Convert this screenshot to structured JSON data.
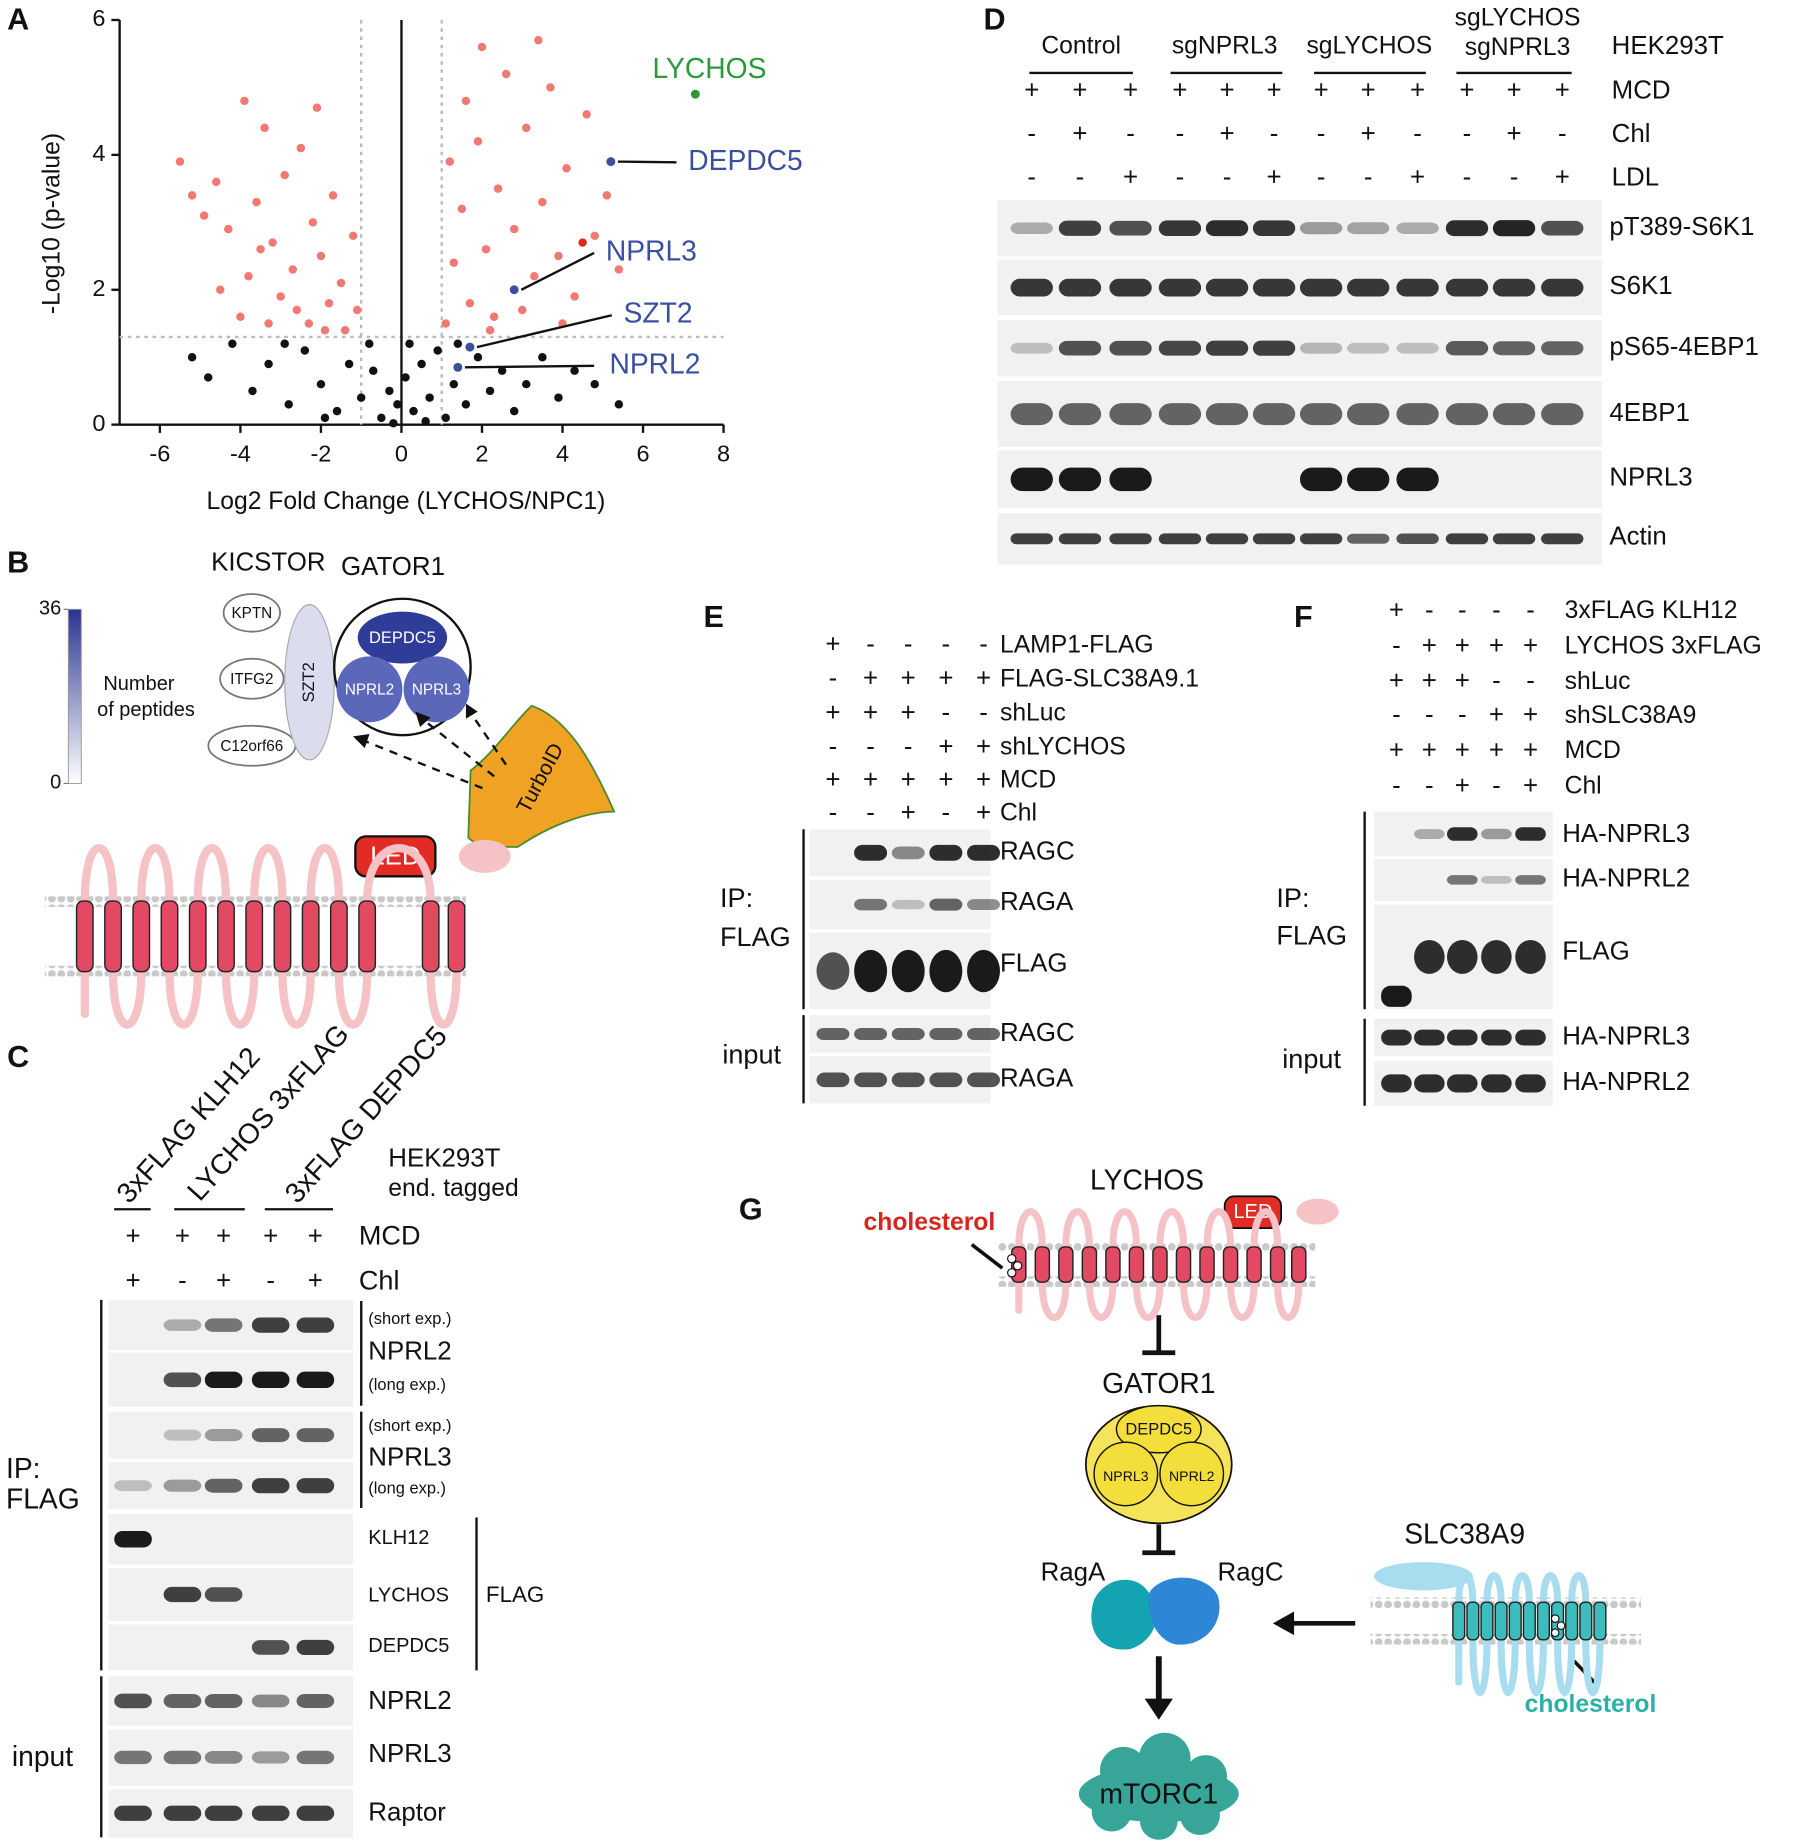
{
  "chart_data": {
    "type": "scatter",
    "xlabel": "Log2 Fold Change (LYCHOS/NPC1)",
    "ylabel": "-Log10 (p-value)",
    "xlim": [
      -7,
      8
    ],
    "xticks": [
      -6,
      -4,
      -2,
      0,
      2,
      4,
      6,
      8
    ],
    "ylim": [
      0,
      6
    ],
    "yticks": [
      0,
      2,
      4,
      6
    ],
    "thresholds": {
      "x": [
        -1,
        1
      ],
      "y": 1.3
    },
    "series": [
      {
        "color": "#f07a72",
        "x": [
          -5.5,
          -5.2,
          -4.9,
          -4.6,
          -4.3,
          -4.0,
          -3.8,
          -3.6,
          -3.4,
          -3.2,
          -3.0,
          -2.9,
          -2.7,
          -2.5,
          -2.3,
          -2.2,
          -2.0,
          -1.8,
          -1.7,
          -1.5,
          -1.4,
          -1.2,
          -1.1,
          -3.3,
          -2.6,
          -4.5,
          -3.9,
          -2.1,
          -1.9,
          -3.5,
          1.1,
          1.3,
          1.5,
          1.7,
          1.9,
          2.1,
          2.3,
          2.4,
          2.6,
          2.8,
          3.0,
          3.1,
          3.3,
          3.5,
          3.7,
          3.9,
          4.1,
          4.3,
          4.6,
          4.8,
          5.1,
          5.4,
          2.0,
          3.4,
          1.2,
          2.2,
          4.0,
          1.6
        ],
        "values": [
          3.9,
          3.4,
          3.1,
          3.6,
          2.9,
          1.6,
          2.2,
          3.3,
          4.4,
          2.7,
          1.9,
          3.7,
          2.3,
          4.1,
          1.5,
          3.0,
          2.5,
          1.8,
          3.4,
          2.1,
          1.4,
          2.8,
          1.7,
          1.5,
          1.7,
          2.0,
          4.8,
          4.7,
          1.4,
          2.6,
          1.5,
          2.4,
          3.2,
          1.8,
          4.2,
          2.6,
          1.6,
          3.5,
          5.2,
          2.9,
          1.7,
          4.4,
          2.2,
          3.3,
          5.0,
          2.5,
          3.8,
          1.9,
          4.6,
          2.8,
          3.4,
          2.3,
          5.6,
          5.7,
          3.9,
          1.4,
          1.5,
          4.8
        ]
      },
      {
        "color": "#111111",
        "x": [
          -5.2,
          -4.8,
          -4.2,
          -3.7,
          -3.3,
          -2.8,
          -2.4,
          -2.0,
          -1.6,
          -1.3,
          -1.0,
          -0.7,
          -0.5,
          -0.3,
          -0.1,
          0.1,
          0.3,
          0.5,
          0.7,
          0.9,
          1.1,
          1.3,
          1.6,
          1.9,
          2.2,
          2.5,
          2.8,
          3.1,
          3.5,
          3.9,
          4.3,
          4.8,
          5.4,
          -0.8,
          0.2,
          -1.9,
          1.4,
          -2.9,
          0.6,
          -0.2
        ],
        "values": [
          1.0,
          0.7,
          1.2,
          0.5,
          0.9,
          0.3,
          1.1,
          0.6,
          0.2,
          0.9,
          0.4,
          0.8,
          0.1,
          0.5,
          0.3,
          0.7,
          0.2,
          0.9,
          0.4,
          1.1,
          0.1,
          0.6,
          0.3,
          1.0,
          0.5,
          0.8,
          0.2,
          0.6,
          1.0,
          0.4,
          0.8,
          0.6,
          0.3,
          1.2,
          1.2,
          0.1,
          1.2,
          1.2,
          0.05,
          0.02
        ]
      },
      {
        "color": "#e0261e",
        "x": [
          4.5
        ],
        "values": [
          2.7
        ]
      }
    ],
    "annotations": [
      {
        "text": "LYCHOS",
        "x": 7.3,
        "y": 4.9,
        "color": "#2a9a3c"
      },
      {
        "text": "DEPDC5",
        "x": 5.2,
        "y": 3.9,
        "color": "#3a4fa0"
      },
      {
        "text": "NPRL3",
        "x": 2.8,
        "y": 2.0,
        "color": "#3a4fa0"
      },
      {
        "text": "SZT2",
        "x": 1.7,
        "y": 1.15,
        "color": "#3a4fa0"
      },
      {
        "text": "NPRL2",
        "x": 1.4,
        "y": 0.85,
        "color": "#3a4fa0"
      }
    ]
  },
  "figure": {
    "panel_labels": [
      "A",
      "B",
      "C",
      "D",
      "E",
      "F",
      "G"
    ],
    "B": {
      "kicstor": "KICSTOR",
      "gator1": "GATOR1",
      "kicstor_subunits": [
        "KPTN",
        "ITFG2",
        "C12orf66"
      ],
      "szt2": "SZT2",
      "gator1_subunits": [
        "DEPDC5",
        "NPRL2",
        "NPRL3"
      ],
      "colorbar": {
        "ticks": [
          0,
          36
        ],
        "label": [
          "Number",
          "of peptides"
        ]
      },
      "turboid": "TurboID",
      "led": "LED"
    },
    "C": {
      "lanes": [
        "3xFLAG KLH12",
        "LYCHOS 3xFLAG",
        "3xFLAG DEPDC5"
      ],
      "cell": [
        "HEK293T",
        "end. tagged"
      ],
      "rows": [
        {
          "label": "MCD",
          "signs": [
            "+",
            "+",
            "+",
            "+",
            "+"
          ]
        },
        {
          "label": "Chl",
          "signs": [
            "+",
            "-",
            "+",
            "-",
            "+"
          ]
        }
      ],
      "blot_labels": [
        "(short exp.)",
        "NPRL2",
        "(long exp.)",
        "(short exp.)",
        "NPRL3",
        "(long exp.)",
        "KLH12",
        "LYCHOS",
        "DEPDC5",
        "NPRL2",
        "NPRL3",
        "Raptor"
      ],
      "flag": "FLAG",
      "ip": [
        "IP:",
        "FLAG"
      ],
      "input": "input"
    },
    "D": {
      "groups": [
        "Control",
        "sgNPRL3",
        "sgLYCHOS",
        [
          "sgLYCHOS",
          "sgNPRL3"
        ]
      ],
      "cell": "HEK293T",
      "rows": [
        {
          "label": "MCD",
          "signs": [
            "+",
            "+",
            "+",
            "+",
            "+",
            "+",
            "+",
            "+",
            "+",
            "+",
            "+",
            "+"
          ]
        },
        {
          "label": "Chl",
          "signs": [
            "-",
            "+",
            "-",
            "-",
            "+",
            "-",
            "-",
            "+",
            "-",
            "-",
            "+",
            "-"
          ]
        },
        {
          "label": "LDL",
          "signs": [
            "-",
            "-",
            "+",
            "-",
            "-",
            "+",
            "-",
            "-",
            "+",
            "-",
            "-",
            "+"
          ]
        }
      ],
      "blot_labels": [
        "pT389-S6K1",
        "S6K1",
        "pS65-4EBP1",
        "4EBP1",
        "NPRL3",
        "Actin"
      ]
    },
    "E": {
      "rows": [
        {
          "label": "LAMP1-FLAG",
          "signs": [
            "+",
            "-",
            "-",
            "-",
            "-"
          ]
        },
        {
          "label": "FLAG-SLC38A9.1",
          "signs": [
            "-",
            "+",
            "+",
            "+",
            "+"
          ]
        },
        {
          "label": "shLuc",
          "signs": [
            "+",
            "+",
            "+",
            "-",
            "-"
          ]
        },
        {
          "label": "shLYCHOS",
          "signs": [
            "-",
            "-",
            "-",
            "+",
            "+"
          ]
        },
        {
          "label": "MCD",
          "signs": [
            "+",
            "+",
            "+",
            "+",
            "+"
          ]
        },
        {
          "label": "Chl",
          "signs": [
            "-",
            "-",
            "+",
            "-",
            "+"
          ]
        }
      ],
      "blot_labels": [
        "RAGC",
        "RAGA",
        "FLAG",
        "RAGC",
        "RAGA"
      ],
      "ip": [
        "IP:",
        "FLAG"
      ],
      "input": "input"
    },
    "F": {
      "rows": [
        {
          "label": "3xFLAG KLH12",
          "signs": [
            "+",
            "-",
            "-",
            "-",
            "-"
          ]
        },
        {
          "label": "LYCHOS 3xFLAG",
          "signs": [
            "-",
            "+",
            "+",
            "+",
            "+"
          ]
        },
        {
          "label": "shLuc",
          "signs": [
            "+",
            "+",
            "+",
            "-",
            "-"
          ]
        },
        {
          "label": "shSLC38A9",
          "signs": [
            "-",
            "-",
            "-",
            "+",
            "+"
          ]
        },
        {
          "label": "MCD",
          "signs": [
            "+",
            "+",
            "+",
            "+",
            "+"
          ]
        },
        {
          "label": "Chl",
          "signs": [
            "-",
            "-",
            "+",
            "-",
            "+"
          ]
        }
      ],
      "blot_labels": [
        "HA-NPRL3",
        "HA-NPRL2",
        "FLAG",
        "HA-NPRL3",
        "HA-NPRL2"
      ],
      "ip": [
        "IP:",
        "FLAG"
      ],
      "input": "input"
    },
    "G": {
      "lychos": "LYCHOS",
      "led": "LED",
      "cholesterol_red": "cholesterol",
      "gator1": "GATOR1",
      "gator1_subunits": [
        "DEPDC5",
        "NPRL3",
        "NPRL2"
      ],
      "raga": "RagA",
      "ragc": "RagC",
      "slc38a9": "SLC38A9",
      "cholesterol_teal": "cholesterol",
      "mtorc1": "mTORC1"
    }
  }
}
